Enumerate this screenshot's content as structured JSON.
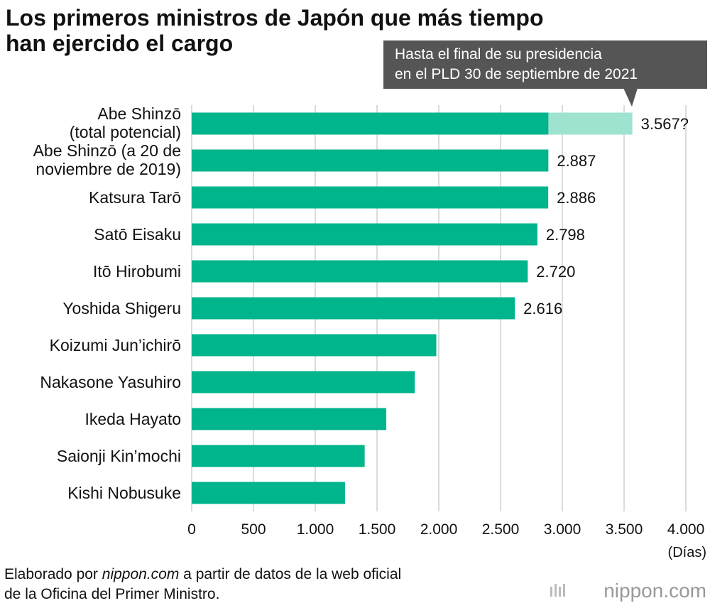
{
  "chart_data": {
    "type": "bar",
    "orientation": "horizontal",
    "overlap": true,
    "title": "Los primeros ministros de Japón que más tiempo\nhan ejercido el cargo",
    "annotation": "Hasta el final de su presidencia\nen el PLD 30 de septiembre de 2021",
    "categories": [
      "Abe Shinzō\n(total potencial)",
      "Abe Shinzō (a 20 de\nnoviembre de 2019)",
      "Katsura Tarō",
      "Satō Eisaku",
      "Itō Hirobumi",
      "Yoshida Shigeru",
      "Koizumi Jun’ichirō",
      "Nakasone Yasuhiro",
      "Ikeda Hayato",
      "Saionji Kin’mochi",
      "Kishi Nobusuke"
    ],
    "series": [
      {
        "color": "#9ee3d0",
        "values": [
          3567,
          null,
          null,
          null,
          null,
          null,
          null,
          null,
          null,
          null,
          null
        ],
        "value_labels": [
          "3.567?",
          null,
          null,
          null,
          null,
          null,
          null,
          null,
          null,
          null,
          null
        ]
      },
      {
        "color": "#00b48c",
        "values": [
          2887,
          2887,
          2886,
          2798,
          2720,
          2616,
          1980,
          1806,
          1575,
          1400,
          1241
        ],
        "value_labels": [
          null,
          "2.887",
          "2.886",
          "2.798",
          "2.720",
          "2.616",
          null,
          null,
          null,
          null,
          null
        ]
      }
    ],
    "xlim": [
      0,
      4000
    ],
    "xticks": [
      0,
      500,
      {
        "value": 1000,
        "label": "1.000"
      },
      {
        "value": 1500,
        "label": "1.500"
      },
      {
        "value": 2000,
        "label": "2.000"
      },
      {
        "value": 2500,
        "label": "2.500"
      },
      {
        "value": 3000,
        "label": "3.000"
      },
      {
        "value": 3500,
        "label": "3.500"
      },
      {
        "value": 4000,
        "label": "4.000"
      }
    ],
    "xlabel": "(Días)",
    "grid": true,
    "source": {
      "pre": "Elaborado por ",
      "site": "nippon.com",
      "post": " a partir de datos de la web oficial",
      "line2": "de la Oficina del Primer Ministro."
    },
    "logo": "nippon.com"
  }
}
